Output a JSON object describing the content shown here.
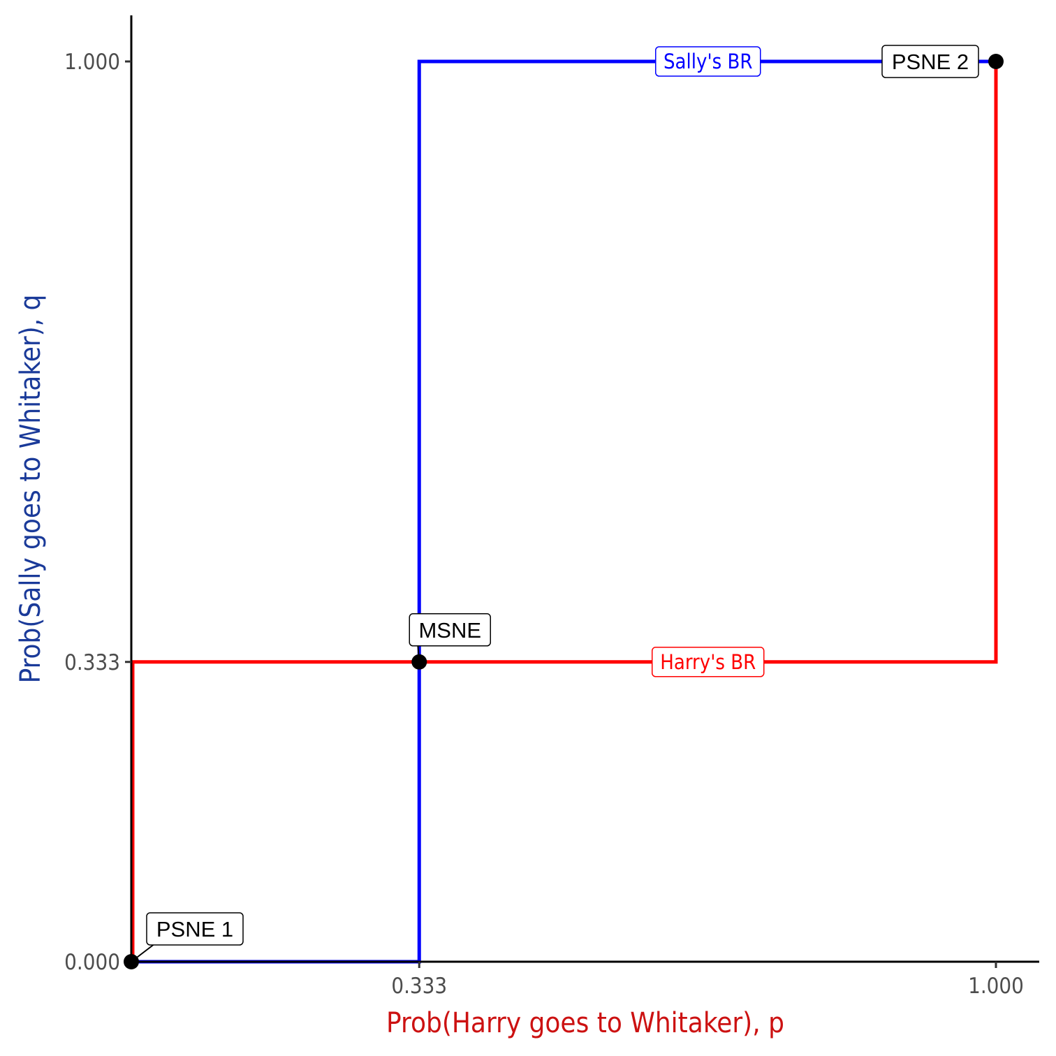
{
  "chart_data": {
    "type": "line",
    "xlabel": "Prob(Harry goes to Whitaker), p",
    "ylabel": "Prob(Sally goes to Whitaker), q",
    "xlim": [
      0,
      1
    ],
    "ylim": [
      0,
      1
    ],
    "x_ticks": [
      0.333,
      1.0
    ],
    "x_tick_labels": [
      "0.333",
      "1.000"
    ],
    "y_ticks": [
      0,
      0.333,
      1.0
    ],
    "y_tick_labels": [
      "0.000",
      "0.333",
      "1.000"
    ],
    "grid": false,
    "series": [
      {
        "name": "Sally's BR",
        "color": "#0000ff",
        "points": [
          [
            0,
            0
          ],
          [
            0.333,
            0
          ],
          [
            0.333,
            1
          ],
          [
            1,
            1
          ]
        ],
        "label_at": [
          0.667,
          1
        ]
      },
      {
        "name": "Harry's BR",
        "color": "#ff0000",
        "points": [
          [
            0,
            0
          ],
          [
            0,
            0.333
          ],
          [
            1,
            0.333
          ],
          [
            1,
            1
          ]
        ],
        "label_at": [
          0.667,
          0.333
        ]
      }
    ],
    "equilibria": [
      {
        "label": "PSNE 1",
        "p": 0,
        "q": 0
      },
      {
        "label": "MSNE",
        "p": 0.333,
        "q": 0.333
      },
      {
        "label": "PSNE 2",
        "p": 1,
        "q": 1
      }
    ],
    "colors": {
      "xlabel": "#cc1111",
      "ylabel": "#1a3a99"
    }
  }
}
